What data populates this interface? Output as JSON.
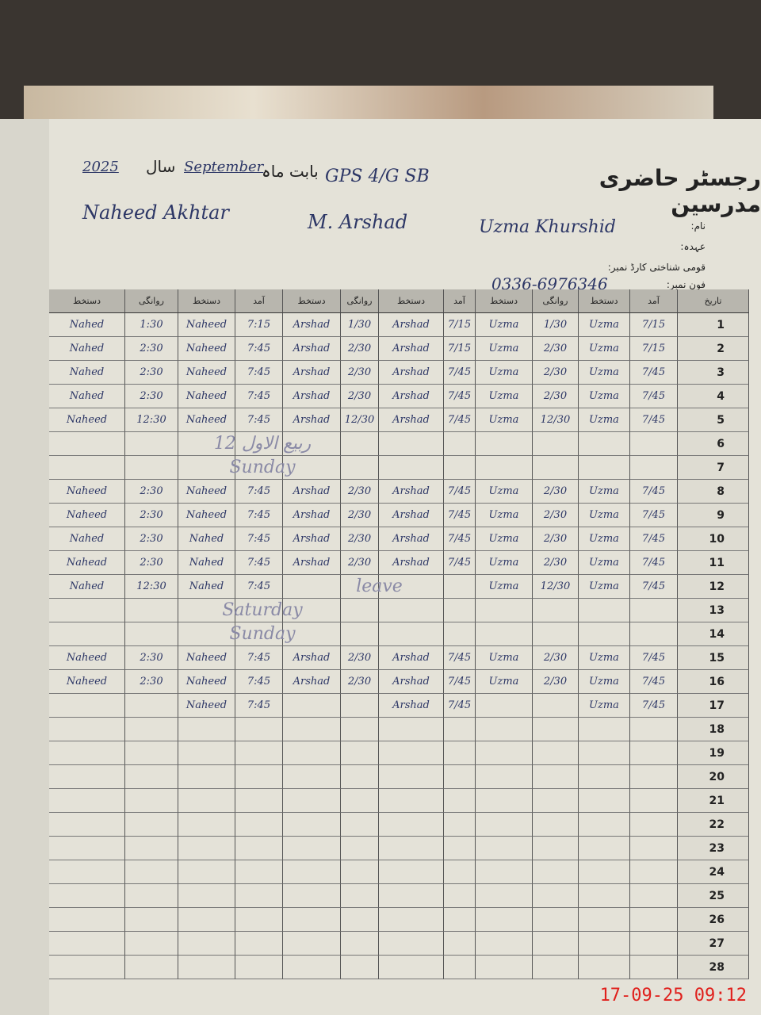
{
  "header": {
    "title": "رجسٹر حاضری مدرسین",
    "school": "GPS 4/G SB",
    "month_label": "بابت ماہ",
    "month": "September",
    "year_label": "سال",
    "year": "2025"
  },
  "labels": {
    "name": "نام:",
    "designation": "عہدہ:",
    "cnic": "قومی شناختی کارڈ نمبر:",
    "phone": "فون نمبر:"
  },
  "teachers": [
    {
      "name": "Naheed Akhtar"
    },
    {
      "name": "M. Arshad"
    },
    {
      "name": "Uzma Khurshid",
      "phone": "0336-6976346"
    }
  ],
  "columns": {
    "signature": "دستخط",
    "departure": "روانگی",
    "arrival": "آمد",
    "date": "تاریخ"
  },
  "rows": [
    {
      "date": 1,
      "cells": [
        "Nahed",
        "1:30",
        "Naheed",
        "7:15",
        "Arshad",
        "1/30",
        "Arshad",
        "7/15",
        "Uzma",
        "1/30",
        "Uzma",
        "7/15"
      ]
    },
    {
      "date": 2,
      "cells": [
        "Nahed",
        "2:30",
        "Naheed",
        "7:45",
        "Arshad",
        "2/30",
        "Arshad",
        "7/15",
        "Uzma",
        "2/30",
        "Uzma",
        "7/15"
      ]
    },
    {
      "date": 3,
      "cells": [
        "Nahed",
        "2:30",
        "Naheed",
        "7:45",
        "Arshad",
        "2/30",
        "Arshad",
        "7/45",
        "Uzma",
        "2/30",
        "Uzma",
        "7/45"
      ]
    },
    {
      "date": 4,
      "cells": [
        "Nahed",
        "2:30",
        "Naheed",
        "7:45",
        "Arshad",
        "2/30",
        "Arshad",
        "7/45",
        "Uzma",
        "2/30",
        "Uzma",
        "7/45"
      ]
    },
    {
      "date": 5,
      "cells": [
        "Naheed",
        "12:30",
        "Naheed",
        "7:45",
        "Arshad",
        "12/30",
        "Arshad",
        "7/45",
        "Uzma",
        "12/30",
        "Uzma",
        "7/45"
      ]
    },
    {
      "date": 6,
      "note": "12 ربیع الاول"
    },
    {
      "date": 7,
      "note": "Sunday"
    },
    {
      "date": 8,
      "cells": [
        "Naheed",
        "2:30",
        "Naheed",
        "7:45",
        "Arshad",
        "2/30",
        "Arshad",
        "7/45",
        "Uzma",
        "2/30",
        "Uzma",
        "7/45"
      ]
    },
    {
      "date": 9,
      "cells": [
        "Naheed",
        "2:30",
        "Naheed",
        "7:45",
        "Arshad",
        "2/30",
        "Arshad",
        "7/45",
        "Uzma",
        "2/30",
        "Uzma",
        "7/45"
      ]
    },
    {
      "date": 10,
      "cells": [
        "Nahed",
        "2:30",
        "Nahed",
        "7:45",
        "Arshad",
        "2/30",
        "Arshad",
        "7/45",
        "Uzma",
        "2/30",
        "Uzma",
        "7/45"
      ]
    },
    {
      "date": 11,
      "cells": [
        "Nahead",
        "2:30",
        "Nahed",
        "7:45",
        "Arshad",
        "2/30",
        "Arshad",
        "7/45",
        "Uzma",
        "2/30",
        "Uzma",
        "7/45"
      ]
    },
    {
      "date": 12,
      "cells": [
        "Nahed",
        "12:30",
        "Nahed",
        "7:45",
        null,
        null,
        null,
        null,
        "Uzma",
        "12/30",
        "Uzma",
        "7/45"
      ],
      "note": "leave"
    },
    {
      "date": 13,
      "note": "Saturday"
    },
    {
      "date": 14,
      "note": "Sunday"
    },
    {
      "date": 15,
      "cells": [
        "Naheed",
        "2:30",
        "Naheed",
        "7:45",
        "Arshad",
        "2/30",
        "Arshad",
        "7/45",
        "Uzma",
        "2/30",
        "Uzma",
        "7/45"
      ]
    },
    {
      "date": 16,
      "cells": [
        "Naheed",
        "2:30",
        "Naheed",
        "7:45",
        "Arshad",
        "2/30",
        "Arshad",
        "7/45",
        "Uzma",
        "2/30",
        "Uzma",
        "7/45"
      ]
    },
    {
      "date": 17,
      "cells": [
        null,
        null,
        "Naheed",
        "7:45",
        null,
        null,
        "Arshad",
        "7/45",
        null,
        null,
        "Uzma",
        "7/45"
      ]
    },
    {
      "date": 18
    },
    {
      "date": 19
    },
    {
      "date": 20
    },
    {
      "date": 21
    },
    {
      "date": 22
    },
    {
      "date": 23
    },
    {
      "date": 24
    },
    {
      "date": 25
    },
    {
      "date": 26
    },
    {
      "date": 27
    },
    {
      "date": 28
    }
  ],
  "timestamp": "17-09-25 09:12"
}
